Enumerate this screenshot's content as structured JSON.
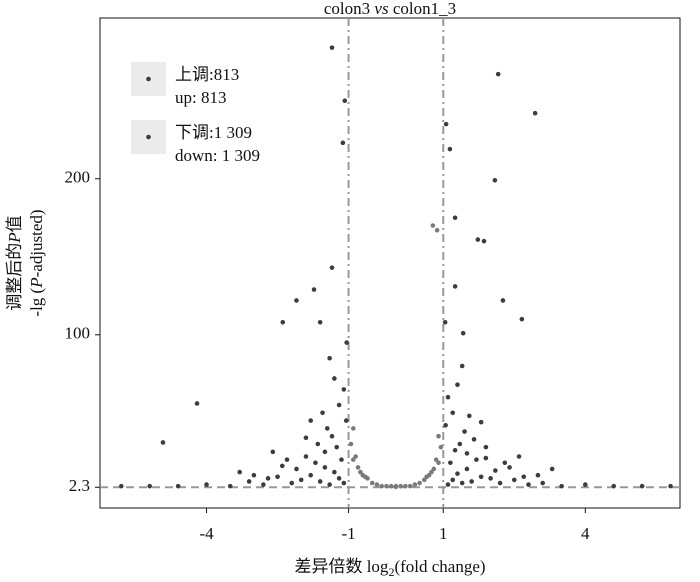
{
  "chart_data": {
    "type": "scatter",
    "title_parts": [
      "colon3 ",
      "vs",
      " colon1_3"
    ],
    "x_label_parts": [
      "差异倍数  log",
      "2",
      "(fold change)"
    ],
    "y_label_lines": [
      [
        "调整后的",
        "P",
        "值"
      ],
      [
        "-lg (",
        "P",
        "-adjusted)"
      ]
    ],
    "xlim": [
      -6.25,
      6.0
    ],
    "ylim": [
      -11,
      303
    ],
    "xticks": [
      -4,
      -1,
      1,
      4
    ],
    "yticks": [
      2.3,
      100,
      200
    ],
    "vlines": [
      -1,
      1
    ],
    "hline": 2.3,
    "legend": "upper left",
    "series": [
      {
        "name": "上调:813",
        "name_en": "up: 813",
        "color": "#3d3d3d",
        "x": [
          2.16,
          2.94,
          1.06,
          1.14,
          2.09,
          1.25,
          1.73,
          1.86,
          2.26,
          2.66,
          1.25,
          1.42,
          1.04,
          1.1,
          1.2,
          1.3,
          1.4,
          1.5,
          1.6,
          1.8,
          2.0,
          2.2,
          2.5,
          2.8,
          3.1,
          3.5,
          4.0,
          4.6,
          5.2,
          5.8,
          1.15,
          1.25,
          1.35,
          1.5,
          1.7,
          1.9,
          2.1,
          2.4,
          2.7,
          3.0,
          1.05,
          1.2,
          1.45,
          1.65,
          1.9,
          2.3,
          1.1,
          1.3,
          1.55,
          1.8,
          2.6,
          3.3,
          1.4
        ],
        "values": [
          267,
          242,
          235,
          219,
          199,
          175,
          161,
          160,
          122,
          110,
          131,
          101,
          108,
          4,
          7,
          11,
          5,
          14,
          6,
          9,
          8,
          5,
          7,
          4,
          5,
          3,
          4,
          3,
          3,
          3,
          18,
          26,
          30,
          24,
          20,
          21,
          13,
          15,
          9,
          10,
          42,
          50,
          38,
          33,
          28,
          18,
          60,
          68,
          48,
          44,
          22,
          14,
          80
        ]
      },
      {
        "name": "下调:1 309",
        "name_en": "down: 1 309",
        "color": "#3d3d3d",
        "x": [
          -1.35,
          -1.08,
          -1.12,
          -1.35,
          -1.73,
          -2.1,
          -2.39,
          -1.6,
          -4.2,
          -4.92,
          -1.04,
          -1.1,
          -1.2,
          -1.3,
          -1.4,
          -1.5,
          -1.6,
          -1.8,
          -2.0,
          -2.2,
          -2.5,
          -2.8,
          -3.1,
          -3.5,
          -4.0,
          -4.6,
          -5.2,
          -5.8,
          -1.15,
          -1.25,
          -1.35,
          -1.5,
          -1.7,
          -1.9,
          -2.1,
          -2.4,
          -2.7,
          -3.0,
          -1.05,
          -1.2,
          -1.45,
          -1.65,
          -1.9,
          -2.3,
          -1.1,
          -1.3,
          -1.55,
          -1.8,
          -2.6,
          -3.3,
          -1.4
        ],
        "values": [
          284,
          250,
          223,
          143,
          129,
          122,
          108,
          108,
          56,
          31,
          95,
          5,
          8,
          12,
          4,
          15,
          6,
          10,
          7,
          5,
          9,
          4,
          6,
          3,
          4,
          3,
          3,
          3,
          20,
          28,
          35,
          25,
          18,
          22,
          14,
          16,
          8,
          10,
          45,
          55,
          40,
          30,
          34,
          20,
          65,
          72,
          50,
          45,
          25,
          12,
          85
        ]
      }
    ],
    "other_points": {
      "color": "#7a7a7a",
      "x": [
        -0.9,
        -0.8,
        -0.7,
        -0.6,
        -0.5,
        -0.4,
        -0.3,
        -0.2,
        -0.1,
        0,
        0.1,
        0.2,
        0.3,
        0.4,
        0.5,
        0.6,
        0.7,
        0.8,
        0.9,
        -0.95,
        -0.85,
        -0.75,
        -0.65,
        0.65,
        0.75,
        0.85,
        0.95,
        -0.9,
        0.9,
        0,
        0.78,
        0.87
      ],
      "values": [
        20,
        15,
        10,
        8,
        5,
        4,
        3,
        3,
        3,
        3,
        3,
        3,
        3,
        4,
        5,
        7,
        10,
        14,
        18,
        30,
        22,
        12,
        9,
        9,
        12,
        20,
        28,
        40,
        35,
        2.5,
        170,
        167
      ]
    }
  }
}
